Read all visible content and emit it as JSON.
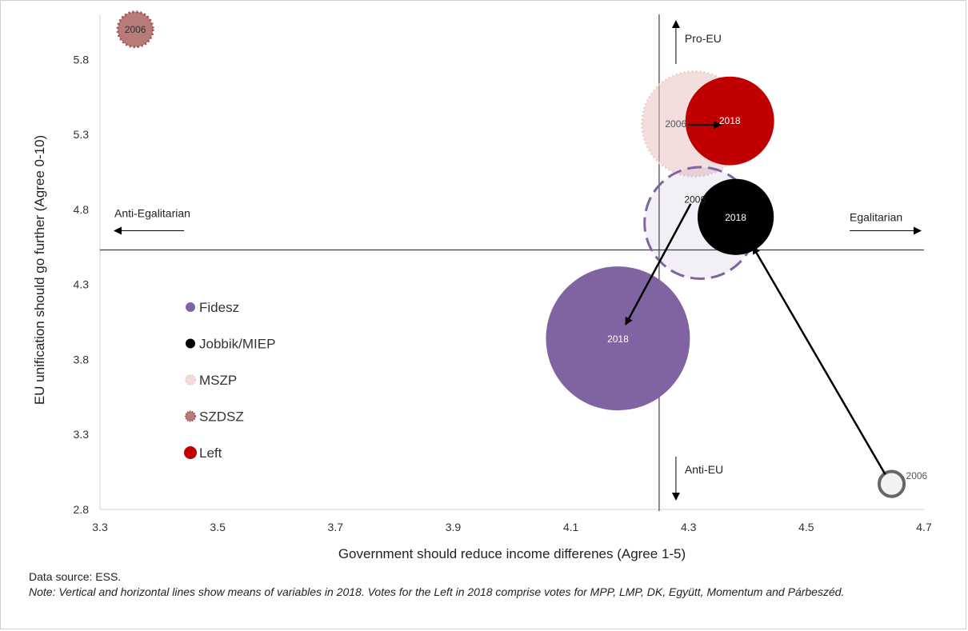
{
  "chart_data": {
    "type": "bubble",
    "xlabel": "Government should reduce income differenes (Agree 1-5)",
    "ylabel": "EU unification should go further (Agree 0-10)",
    "xlim": [
      3.3,
      4.7
    ],
    "ylim": [
      2.8,
      6.1
    ],
    "x_ticks": [
      "3.3",
      "3.5",
      "3.7",
      "3.9",
      "4.1",
      "4.3",
      "4.5",
      "4.7"
    ],
    "y_ticks": [
      "2.8",
      "3.3",
      "3.8",
      "4.3",
      "4.8",
      "5.3",
      "5.8"
    ],
    "mean_x_2018": 4.25,
    "mean_y_2018": 4.53,
    "quadrant_labels": {
      "pro_eu": "Pro-EU",
      "anti_eu": "Anti-EU",
      "egalitarian": "Egalitarian",
      "anti_egalitarian": "Anti-Egalitarian"
    },
    "series": [
      {
        "name": "Fidesz",
        "color": "#8064a2",
        "points": [
          {
            "year": "2006",
            "x": 4.32,
            "y": 4.71,
            "size": 0.6,
            "style": "dashed-light"
          },
          {
            "year": "2018",
            "x": 4.18,
            "y": 3.94,
            "size": 1.0,
            "style": "solid"
          }
        ]
      },
      {
        "name": "Jobbik/MIEP",
        "color": "#000000",
        "points": [
          {
            "year": "2006",
            "x": 4.645,
            "y": 2.97,
            "size": 0.03,
            "style": "ring"
          },
          {
            "year": "2018",
            "x": 4.38,
            "y": 4.75,
            "size": 0.28,
            "style": "solid"
          }
        ]
      },
      {
        "name": "MSZP",
        "color": "#f2dcdb",
        "points": [
          {
            "year": "2006",
            "x": 4.31,
            "y": 5.37,
            "size": 0.53,
            "style": "dotted-light"
          }
        ]
      },
      {
        "name": "SZDSZ",
        "color": "#b77b79",
        "points": [
          {
            "year": "2006",
            "x": 3.36,
            "y": 6.0,
            "size": 0.06,
            "style": "dotted"
          }
        ]
      },
      {
        "name": "Left",
        "color": "#c00000",
        "points": [
          {
            "year": "2018",
            "x": 4.37,
            "y": 5.39,
            "size": 0.38,
            "style": "solid"
          }
        ]
      }
    ],
    "legend": {
      "placement": "left",
      "entries": [
        "Fidesz",
        "Jobbik/MIEP",
        "MSZP",
        "SZDSZ",
        "Left"
      ]
    }
  },
  "footer": {
    "source": "Data source: ESS.",
    "note": "Note: Vertical and horizontal lines show means of variables in 2018. Votes for the Left in 2018 comprise votes for MPP, LMP, DK, Együtt, Momentum and Párbeszéd."
  }
}
